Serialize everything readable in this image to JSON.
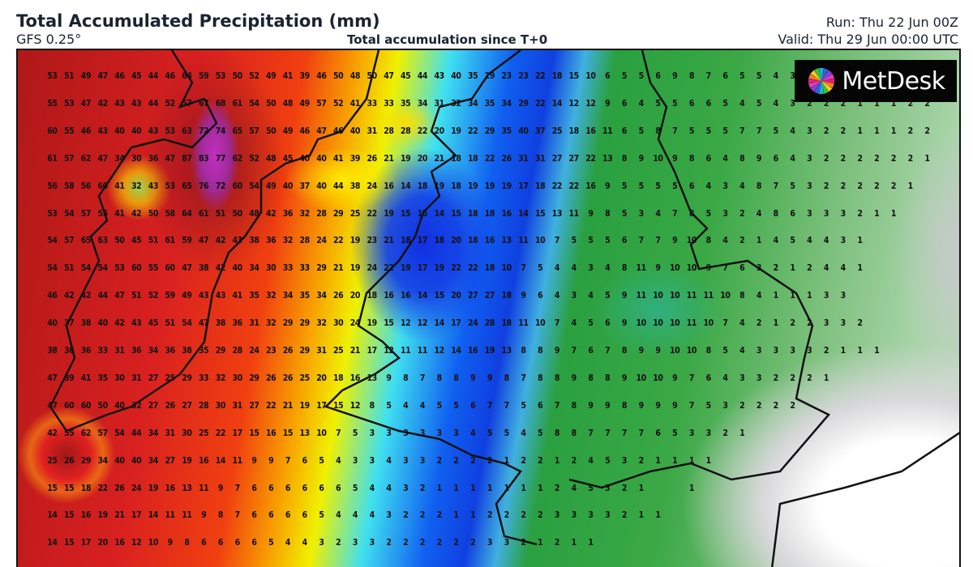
{
  "header": {
    "title": "Total Accumulated Precipitation (mm)",
    "model": "GFS 0.25°",
    "subtitle": "Total accumulation since T+0",
    "run": "Run: Thu 22 Jun 00Z",
    "valid": "Valid: Thu 29 Jun 00:00 UTC"
  },
  "logo": {
    "text": "MetDesk",
    "icon": "pinwheel-icon"
  },
  "map": {
    "units": "mm",
    "colors": {
      "high": "#b01818",
      "peak": "#c030c0",
      "mid": "#f0f000",
      "low_blue": "#1040e0",
      "low_green": "#3aa845",
      "dry": "#ffffff"
    },
    "rows": [
      [
        "53",
        "51",
        "49",
        "47",
        "46",
        "45",
        "44",
        "46",
        "64",
        "59",
        "53",
        "50",
        "52",
        "49",
        "41",
        "39",
        "46",
        "50",
        "48",
        "50",
        "47",
        "45",
        "44",
        "43",
        "40",
        "35",
        "29",
        "23",
        "23",
        "22",
        "18",
        "15",
        "10",
        "6",
        "5",
        "5",
        "6",
        "9",
        "8",
        "7",
        "6",
        "5",
        "5",
        "4",
        "3"
      ],
      [
        "55",
        "53",
        "47",
        "42",
        "43",
        "43",
        "44",
        "52",
        "57",
        "67",
        "68",
        "61",
        "54",
        "50",
        "48",
        "49",
        "57",
        "52",
        "41",
        "33",
        "33",
        "35",
        "34",
        "31",
        "32",
        "34",
        "35",
        "34",
        "29",
        "22",
        "14",
        "12",
        "12",
        "9",
        "6",
        "4",
        "5",
        "5",
        "6",
        "6",
        "5",
        "4",
        "5",
        "4",
        "3",
        "2",
        "2",
        "2",
        "1",
        "1",
        "1",
        "2",
        "2"
      ],
      [
        "60",
        "55",
        "46",
        "43",
        "40",
        "40",
        "43",
        "53",
        "63",
        "72",
        "74",
        "65",
        "57",
        "50",
        "49",
        "46",
        "47",
        "46",
        "40",
        "31",
        "28",
        "28",
        "22",
        "20",
        "19",
        "22",
        "29",
        "35",
        "40",
        "37",
        "25",
        "18",
        "16",
        "11",
        "6",
        "5",
        "8",
        "7",
        "5",
        "5",
        "5",
        "7",
        "7",
        "5",
        "4",
        "3",
        "2",
        "2",
        "1",
        "1",
        "1",
        "2",
        "2"
      ],
      [
        "61",
        "57",
        "62",
        "47",
        "34",
        "30",
        "36",
        "47",
        "87",
        "83",
        "77",
        "62",
        "52",
        "48",
        "45",
        "40",
        "40",
        "41",
        "39",
        "26",
        "21",
        "19",
        "20",
        "21",
        "18",
        "18",
        "22",
        "26",
        "31",
        "31",
        "27",
        "27",
        "22",
        "13",
        "8",
        "9",
        "10",
        "9",
        "8",
        "6",
        "4",
        "8",
        "9",
        "6",
        "4",
        "3",
        "2",
        "2",
        "2",
        "2",
        "2",
        "2",
        "1"
      ],
      [
        "56",
        "58",
        "56",
        "60",
        "41",
        "32",
        "43",
        "53",
        "65",
        "76",
        "72",
        "60",
        "54",
        "49",
        "40",
        "37",
        "40",
        "44",
        "38",
        "24",
        "16",
        "14",
        "18",
        "19",
        "18",
        "19",
        "19",
        "19",
        "17",
        "18",
        "22",
        "22",
        "16",
        "9",
        "5",
        "5",
        "5",
        "5",
        "6",
        "4",
        "3",
        "4",
        "8",
        "7",
        "5",
        "3",
        "2",
        "2",
        "2",
        "2",
        "2",
        "1"
      ],
      [
        "53",
        "54",
        "57",
        "55",
        "41",
        "42",
        "50",
        "58",
        "64",
        "61",
        "51",
        "50",
        "48",
        "42",
        "36",
        "32",
        "28",
        "29",
        "25",
        "22",
        "19",
        "15",
        "15",
        "14",
        "15",
        "18",
        "18",
        "16",
        "14",
        "15",
        "13",
        "11",
        "9",
        "8",
        "5",
        "3",
        "4",
        "7",
        "8",
        "5",
        "3",
        "2",
        "4",
        "8",
        "6",
        "3",
        "3",
        "3",
        "2",
        "1",
        "1"
      ],
      [
        "54",
        "57",
        "65",
        "63",
        "50",
        "45",
        "51",
        "61",
        "59",
        "47",
        "42",
        "43",
        "38",
        "36",
        "32",
        "28",
        "24",
        "22",
        "19",
        "23",
        "21",
        "18",
        "17",
        "18",
        "20",
        "18",
        "16",
        "13",
        "11",
        "10",
        "7",
        "5",
        "5",
        "5",
        "6",
        "7",
        "7",
        "9",
        "10",
        "8",
        "4",
        "2",
        "1",
        "4",
        "5",
        "4",
        "4",
        "3",
        "1"
      ],
      [
        "54",
        "51",
        "54",
        "54",
        "53",
        "60",
        "55",
        "60",
        "47",
        "38",
        "42",
        "40",
        "34",
        "30",
        "33",
        "33",
        "29",
        "21",
        "19",
        "24",
        "22",
        "19",
        "17",
        "19",
        "22",
        "22",
        "18",
        "10",
        "7",
        "5",
        "4",
        "4",
        "3",
        "4",
        "8",
        "11",
        "9",
        "10",
        "10",
        "9",
        "7",
        "6",
        "3",
        "2",
        "1",
        "2",
        "4",
        "4",
        "1"
      ],
      [
        "46",
        "42",
        "42",
        "44",
        "47",
        "51",
        "52",
        "59",
        "49",
        "43",
        "43",
        "41",
        "35",
        "32",
        "34",
        "35",
        "34",
        "26",
        "20",
        "18",
        "16",
        "16",
        "14",
        "15",
        "20",
        "27",
        "27",
        "18",
        "9",
        "6",
        "4",
        "3",
        "4",
        "5",
        "9",
        "11",
        "10",
        "10",
        "11",
        "11",
        "10",
        "8",
        "4",
        "1",
        "1",
        "1",
        "3",
        "3"
      ],
      [
        "40",
        "37",
        "38",
        "40",
        "42",
        "43",
        "45",
        "51",
        "54",
        "47",
        "38",
        "36",
        "31",
        "32",
        "29",
        "29",
        "32",
        "30",
        "24",
        "19",
        "15",
        "12",
        "12",
        "14",
        "17",
        "24",
        "28",
        "18",
        "11",
        "10",
        "7",
        "4",
        "5",
        "6",
        "9",
        "10",
        "10",
        "10",
        "11",
        "10",
        "7",
        "4",
        "2",
        "1",
        "2",
        "2",
        "3",
        "3",
        "2"
      ],
      [
        "38",
        "36",
        "36",
        "33",
        "31",
        "36",
        "34",
        "36",
        "38",
        "35",
        "29",
        "28",
        "24",
        "23",
        "26",
        "29",
        "31",
        "25",
        "21",
        "17",
        "12",
        "11",
        "11",
        "12",
        "14",
        "16",
        "19",
        "13",
        "8",
        "8",
        "9",
        "7",
        "6",
        "7",
        "8",
        "9",
        "9",
        "10",
        "10",
        "8",
        "5",
        "4",
        "3",
        "3",
        "3",
        "3",
        "2",
        "1",
        "1",
        "1"
      ],
      [
        "47",
        "39",
        "41",
        "35",
        "30",
        "31",
        "27",
        "25",
        "29",
        "33",
        "32",
        "30",
        "29",
        "26",
        "26",
        "25",
        "20",
        "18",
        "16",
        "13",
        "9",
        "8",
        "7",
        "8",
        "8",
        "9",
        "9",
        "8",
        "7",
        "8",
        "8",
        "9",
        "8",
        "8",
        "9",
        "10",
        "10",
        "9",
        "7",
        "6",
        "4",
        "3",
        "3",
        "2",
        "2",
        "2",
        "1"
      ],
      [
        "47",
        "60",
        "60",
        "50",
        "40",
        "32",
        "27",
        "26",
        "27",
        "28",
        "30",
        "31",
        "27",
        "22",
        "21",
        "19",
        "17",
        "15",
        "12",
        "8",
        "5",
        "4",
        "4",
        "5",
        "5",
        "6",
        "7",
        "7",
        "5",
        "6",
        "7",
        "8",
        "9",
        "9",
        "8",
        "9",
        "9",
        "9",
        "7",
        "5",
        "3",
        "2",
        "2",
        "2",
        "2"
      ],
      [
        "42",
        "55",
        "62",
        "57",
        "54",
        "44",
        "34",
        "31",
        "30",
        "25",
        "22",
        "17",
        "15",
        "16",
        "15",
        "13",
        "10",
        "7",
        "5",
        "3",
        "3",
        "3",
        "3",
        "3",
        "3",
        "4",
        "5",
        "5",
        "4",
        "5",
        "8",
        "8",
        "7",
        "7",
        "7",
        "7",
        "6",
        "5",
        "3",
        "3",
        "2",
        "1"
      ],
      [
        "25",
        "26",
        "29",
        "34",
        "40",
        "40",
        "34",
        "27",
        "19",
        "16",
        "14",
        "11",
        "9",
        "9",
        "7",
        "6",
        "5",
        "4",
        "3",
        "3",
        "4",
        "3",
        "3",
        "2",
        "2",
        "2",
        "2",
        "1",
        "2",
        "2",
        "1",
        "2",
        "4",
        "5",
        "3",
        "2",
        "1",
        "1",
        "1",
        "1"
      ],
      [
        "15",
        "15",
        "18",
        "22",
        "26",
        "24",
        "19",
        "16",
        "13",
        "11",
        "9",
        "7",
        "6",
        "6",
        "6",
        "6",
        "6",
        "6",
        "5",
        "4",
        "4",
        "3",
        "2",
        "1",
        "1",
        "1",
        "1",
        "1",
        "1",
        "1",
        "2",
        "4",
        "5",
        "3",
        "2",
        "1",
        "",
        "",
        "1"
      ],
      [
        "14",
        "15",
        "16",
        "19",
        "21",
        "17",
        "14",
        "11",
        "11",
        "9",
        "8",
        "7",
        "6",
        "6",
        "6",
        "6",
        "5",
        "4",
        "4",
        "4",
        "3",
        "2",
        "2",
        "2",
        "1",
        "1",
        "2",
        "2",
        "2",
        "2",
        "3",
        "3",
        "3",
        "3",
        "2",
        "1",
        "1"
      ],
      [
        "14",
        "15",
        "17",
        "20",
        "16",
        "12",
        "10",
        "9",
        "8",
        "6",
        "6",
        "6",
        "6",
        "5",
        "4",
        "4",
        "3",
        "2",
        "3",
        "3",
        "2",
        "2",
        "2",
        "2",
        "2",
        "2",
        "3",
        "3",
        "2",
        "1",
        "2",
        "1",
        "1"
      ]
    ]
  }
}
